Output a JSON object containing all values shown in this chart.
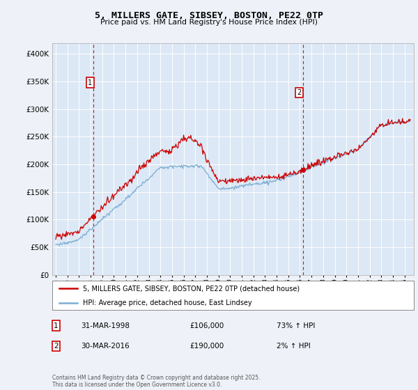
{
  "title": "5, MILLERS GATE, SIBSEY, BOSTON, PE22 0TP",
  "subtitle": "Price paid vs. HM Land Registry's House Price Index (HPI)",
  "legend_line1": "5, MILLERS GATE, SIBSEY, BOSTON, PE22 0TP (detached house)",
  "legend_line2": "HPI: Average price, detached house, East Lindsey",
  "annotation1_date": "31-MAR-1998",
  "annotation1_price": "£106,000",
  "annotation1_hpi": "73% ↑ HPI",
  "annotation2_date": "30-MAR-2016",
  "annotation2_price": "£190,000",
  "annotation2_hpi": "2% ↑ HPI",
  "footnote": "Contains HM Land Registry data © Crown copyright and database right 2025.\nThis data is licensed under the Open Government Licence v3.0.",
  "price_color": "#cc0000",
  "hpi_color": "#7aadd4",
  "bg_color": "#eef2f8",
  "plot_bg": "#dce8f5",
  "grid_color": "#ffffff",
  "ylim": [
    0,
    420000
  ],
  "yticks": [
    0,
    50000,
    100000,
    150000,
    200000,
    250000,
    300000,
    350000,
    400000
  ],
  "sale1_x": 1998.25,
  "sale1_y": 106000,
  "sale2_x": 2016.25,
  "sale2_y": 190000,
  "xlim_start": 1994.7,
  "xlim_end": 2025.8,
  "xtick_start": 1995,
  "xtick_end": 2025
}
